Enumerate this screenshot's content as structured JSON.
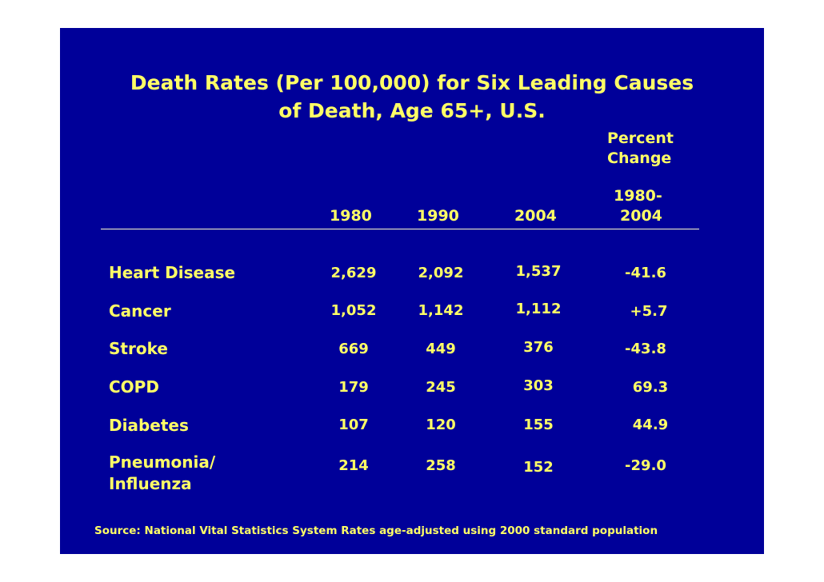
{
  "title_line1": "Death Rates (Per 100,000) for Six Leading Causes",
  "title_line2": "of Death, Age 65+, U.S.",
  "columns": {
    "percent_change_label_1": "Percent",
    "percent_change_label_2": "Change",
    "year_1980": "1980",
    "year_1990": "1990",
    "year_2004": "2004",
    "range_line_1": "1980-",
    "range_line_2": "2004"
  },
  "rows": [
    {
      "cause": "Heart Disease",
      "cause_line2": "",
      "v1980": "2,629",
      "v1990": "2,092",
      "v2004": "1,537",
      "change": "-41.6"
    },
    {
      "cause": "Cancer",
      "cause_line2": "",
      "v1980": "1,052",
      "v1990": "1,142",
      "v2004": "1,112",
      "change": "+5.7"
    },
    {
      "cause": "Stroke",
      "cause_line2": "",
      "v1980": "669",
      "v1990": "449",
      "v2004": "376",
      "change": "-43.8"
    },
    {
      "cause": "COPD",
      "cause_line2": "",
      "v1980": "179",
      "v1990": "245",
      "v2004": "303",
      "change": "69.3"
    },
    {
      "cause": "Diabetes",
      "cause_line2": "",
      "v1980": "107",
      "v1990": "120",
      "v2004": "155",
      "change": "44.9"
    },
    {
      "cause": "Pneumonia/",
      "cause_line2": "Influenza",
      "v1980": "214",
      "v1990": "258",
      "v2004": "152",
      "change": "-29.0"
    }
  ],
  "source": "Source: National Vital Statistics System Rates age-adjusted using 2000 standard population",
  "colors": {
    "background": "#000099",
    "text": "#ffff66",
    "rule": "#ffffcc"
  }
}
